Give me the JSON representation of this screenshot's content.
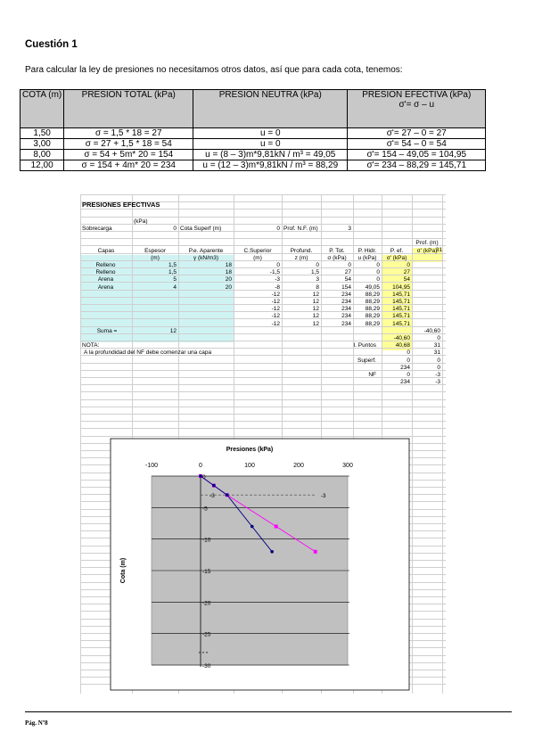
{
  "heading": "Cuestión 1",
  "intro": "Para calcular la ley de presiones no necesitamos otros datos, así que para cada cota, tenemos:",
  "table": {
    "headers": [
      "COTA (m)",
      "PRESION TOTAL (kPa)",
      "PRESION NEUTRA (kPa)",
      "PRESION EFECTIVA (kPa)"
    ],
    "header_sub": "σ'= σ – u",
    "rows": [
      [
        "1,50",
        "σ = 1,5 * 18 = 27",
        "u = 0",
        "σ'= 27 – 0 = 27"
      ],
      [
        "3,00",
        "σ = 27 + 1,5 * 18 = 54",
        "u = 0",
        "σ'= 54 – 0 = 54"
      ],
      [
        "8,00",
        "σ = 54 + 5m* 20 = 154",
        "u = (8 – 3)m*9,81kN / m³ = 49,05",
        "σ'= 154 – 49,05 = 104,95"
      ],
      [
        "12,00",
        "σ = 154 + 4m* 20 = 234",
        "u = (12 – 3)m*9,81kN / m³ = 88,29",
        "σ'= 234 – 88,29 = 145,71"
      ]
    ]
  },
  "sheet": {
    "title": "PRESIONES EFECTIVAS",
    "unit_kpa": "(kPa)",
    "sobrecarga_label": "Sobrecarga",
    "sobrecarga_value": "0",
    "cota_label": "Cota Superf (m)",
    "cota_value": "0",
    "nf_label": "Prof. N.F. (m)",
    "nf_value": "3",
    "prof_header": "Prof. (m)",
    "prof_value": "31",
    "col_headers": [
      "Capas",
      "Espesor",
      "P.e. Aparente",
      "C.Superior",
      "Profund.",
      "P. Tot.",
      "P. Hidr.",
      "P. ef.",
      "σ' (kPa)"
    ],
    "col_sub": [
      "",
      "(m)",
      "γ (kN/m3)",
      "(m)",
      "z (m)",
      "σ (kPa)",
      "u (kPa)",
      "σ' (kPa)",
      ""
    ],
    "rows": [
      [
        "Relleno",
        "1,5",
        "18",
        "0",
        "0",
        "0",
        "0",
        "0"
      ],
      [
        "Relleno",
        "1,5",
        "18",
        "-1,5",
        "1,5",
        "27",
        "0",
        "27"
      ],
      [
        "Arena",
        "5",
        "20",
        "-3",
        "3",
        "54",
        "0",
        "54"
      ],
      [
        "Arena",
        "4",
        "20",
        "-8",
        "8",
        "154",
        "49,05",
        "104,95"
      ],
      [
        "",
        "",
        "",
        "-12",
        "12",
        "234",
        "88,29",
        "145,71"
      ],
      [
        "",
        "",
        "",
        "-12",
        "12",
        "234",
        "88,29",
        "145,71"
      ],
      [
        "",
        "",
        "",
        "-12",
        "12",
        "234",
        "88,29",
        "145,71"
      ],
      [
        "",
        "",
        "",
        "-12",
        "12",
        "234",
        "88,29",
        "145,71"
      ],
      [
        "",
        "",
        "",
        "-12",
        "12",
        "234",
        "88,29",
        "145,71"
      ]
    ],
    "suma_label": "Suma =",
    "suma_value": "12",
    "suma_extra": "-40,60",
    "nota_label": "NOTA:",
    "nota_text": "A la profundidad del NF debe comenzar una capa",
    "after_rows": [
      [
        "",
        "",
        "-40,60",
        "0"
      ],
      [
        "I. Puntos",
        "",
        "40,68",
        "31"
      ],
      [
        "",
        "",
        "0",
        "31"
      ],
      [
        "Superf.",
        "",
        "0",
        "0"
      ],
      [
        "",
        "",
        "234",
        "0"
      ],
      [
        "NF",
        "",
        "0",
        "-3"
      ],
      [
        "",
        "",
        "234",
        "-3"
      ]
    ]
  },
  "chart_data": {
    "type": "line",
    "title": "Presiones (kPa)",
    "xlabel": "",
    "ylabel": "Cota (m)",
    "xlim": [
      -100,
      300
    ],
    "ylim": [
      -30,
      0
    ],
    "xticks": [
      "-100",
      "0",
      "100",
      "200",
      "300"
    ],
    "yticks": [
      "0",
      "-5",
      "-10",
      "-15",
      "-20",
      "-25",
      "-30"
    ],
    "nf_marker_labels": [
      "-3",
      "-3"
    ],
    "series": [
      {
        "color": "#ff00ff",
        "x": [
          0,
          27,
          54,
          154,
          234
        ],
        "y": [
          0,
          -1.5,
          -3,
          -8,
          -12
        ]
      },
      {
        "color": "#000080",
        "x": [
          0,
          27,
          54,
          104.95,
          145.71
        ],
        "y": [
          0,
          -1.5,
          -3,
          -8,
          -12
        ]
      }
    ],
    "nf_line": {
      "x": [
        0,
        234
      ],
      "y": [
        -3,
        -3
      ]
    }
  },
  "page_number": "Pág. Nº8"
}
